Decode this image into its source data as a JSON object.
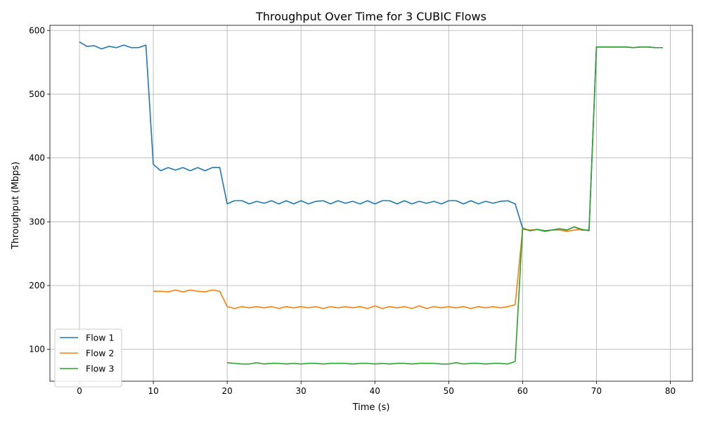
{
  "chart_data": {
    "type": "line",
    "title": "Throughput Over Time for 3 CUBIC Flows",
    "xlabel": "Time (s)",
    "ylabel": "Throughput (Mbps)",
    "xlim": [
      -4,
      83
    ],
    "ylim": [
      50,
      608
    ],
    "xticks": [
      0,
      10,
      20,
      30,
      40,
      50,
      60,
      70,
      80
    ],
    "yticks": [
      100,
      200,
      300,
      400,
      500,
      600
    ],
    "grid": true,
    "legend_position": "lower-left",
    "series": [
      {
        "name": "Flow 1",
        "color": "#1f77b4",
        "x": [
          0,
          1,
          2,
          3,
          4,
          5,
          6,
          7,
          8,
          9,
          10,
          11,
          12,
          13,
          14,
          15,
          16,
          17,
          18,
          19,
          20,
          21,
          22,
          23,
          24,
          25,
          26,
          27,
          28,
          29,
          30,
          31,
          32,
          33,
          34,
          35,
          36,
          37,
          38,
          39,
          40,
          41,
          42,
          43,
          44,
          45,
          46,
          47,
          48,
          49,
          50,
          51,
          52,
          53,
          54,
          55,
          56,
          57,
          58,
          59,
          60,
          61,
          62,
          63,
          64,
          65,
          66,
          67,
          68,
          69,
          70,
          71,
          72,
          73,
          74,
          75,
          76,
          77,
          78,
          79
        ],
        "y": [
          582,
          575,
          576,
          571,
          575,
          573,
          577,
          573,
          573,
          577,
          390,
          380,
          385,
          381,
          385,
          380,
          385,
          380,
          385,
          385,
          328,
          333,
          333,
          328,
          332,
          329,
          333,
          328,
          333,
          328,
          333,
          328,
          332,
          333,
          328,
          333,
          329,
          332,
          328,
          333,
          328,
          333,
          333,
          328,
          333,
          328,
          332,
          329,
          332,
          328,
          333,
          333,
          328,
          333,
          328,
          332,
          329,
          332,
          333,
          328,
          290,
          286,
          288,
          286,
          287,
          289,
          287,
          292,
          287,
          287,
          574,
          574,
          574,
          574,
          574,
          573,
          574,
          574,
          573,
          573
        ]
      },
      {
        "name": "Flow 2",
        "color": "#ff7f0e",
        "x": [
          10,
          11,
          12,
          13,
          14,
          15,
          16,
          17,
          18,
          19,
          20,
          21,
          22,
          23,
          24,
          25,
          26,
          27,
          28,
          29,
          30,
          31,
          32,
          33,
          34,
          35,
          36,
          37,
          38,
          39,
          40,
          41,
          42,
          43,
          44,
          45,
          46,
          47,
          48,
          49,
          50,
          51,
          52,
          53,
          54,
          55,
          56,
          57,
          58,
          59,
          60,
          61,
          62,
          63,
          64,
          65,
          66,
          67,
          68,
          69
        ],
        "y": [
          191,
          191,
          190,
          193,
          190,
          193,
          191,
          190,
          193,
          191,
          167,
          164,
          167,
          165,
          167,
          165,
          167,
          164,
          167,
          165,
          167,
          165,
          167,
          164,
          167,
          165,
          167,
          165,
          167,
          164,
          168,
          164,
          167,
          165,
          167,
          164,
          168,
          164,
          167,
          165,
          167,
          165,
          167,
          164,
          167,
          165,
          167,
          165,
          167,
          170,
          288,
          287,
          288,
          285,
          287,
          287,
          285,
          287,
          288,
          286
        ]
      },
      {
        "name": "Flow 3",
        "color": "#2ca02c",
        "x": [
          20,
          21,
          22,
          23,
          24,
          25,
          26,
          27,
          28,
          29,
          30,
          31,
          32,
          33,
          34,
          35,
          36,
          37,
          38,
          39,
          40,
          41,
          42,
          43,
          44,
          45,
          46,
          47,
          48,
          49,
          50,
          51,
          52,
          53,
          54,
          55,
          56,
          57,
          58,
          59,
          60,
          61,
          62,
          63,
          64,
          65,
          66,
          67,
          68,
          69,
          70,
          71,
          72,
          73,
          74,
          75,
          76,
          77,
          78,
          79
        ],
        "y": [
          79,
          78,
          77,
          77,
          79,
          77,
          78,
          78,
          77,
          78,
          77,
          78,
          78,
          77,
          78,
          78,
          78,
          77,
          78,
          78,
          77,
          78,
          77,
          78,
          78,
          77,
          78,
          78,
          78,
          77,
          77,
          79,
          77,
          78,
          78,
          77,
          78,
          78,
          77,
          81,
          290,
          286,
          288,
          285,
          287,
          289,
          287,
          292,
          288,
          286,
          574,
          574,
          574,
          574,
          574,
          573,
          574,
          574,
          573,
          573
        ]
      }
    ]
  }
}
